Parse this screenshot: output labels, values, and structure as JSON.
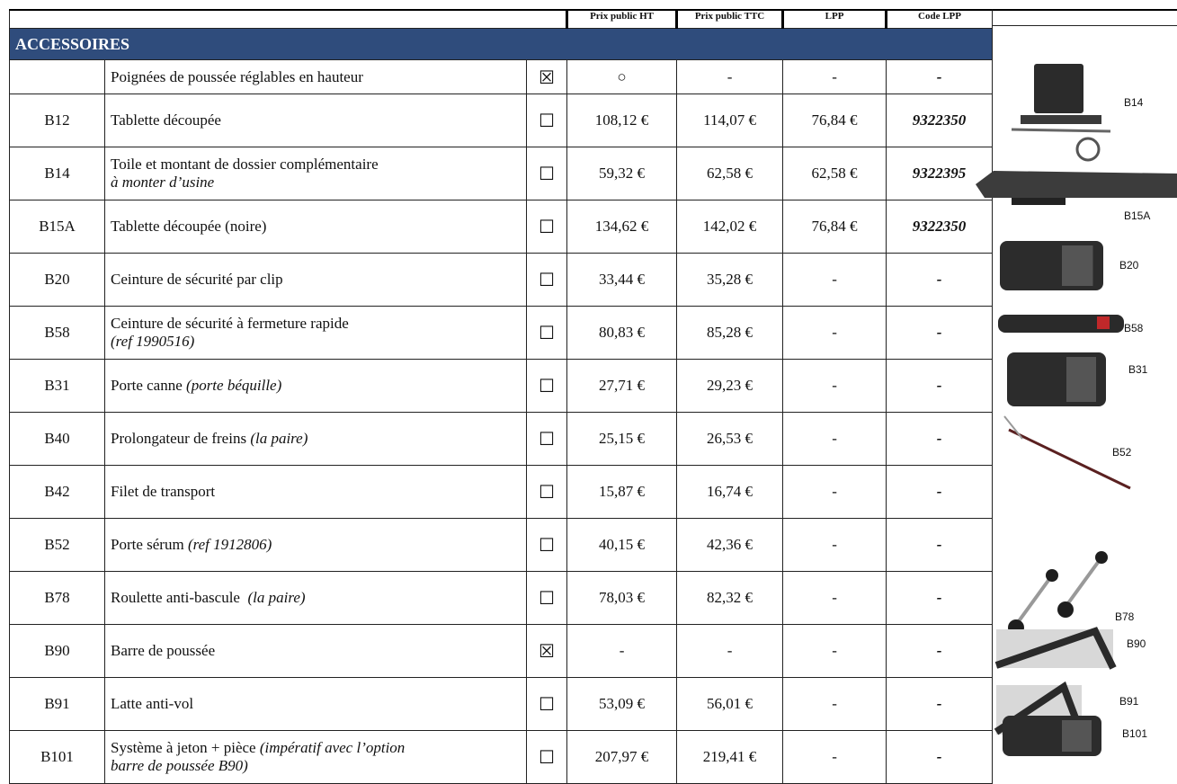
{
  "header": {
    "columns": [
      "Prix public HT",
      "Prix public TTC",
      "LPP",
      "Code LPP"
    ]
  },
  "section": {
    "title": "ACCESSOIRES"
  },
  "table": {
    "rows": [
      {
        "code": null,
        "desc": [
          [
            {
              "text": "Poignées de poussée réglables en hauteur"
            }
          ]
        ],
        "check": "☒",
        "ht": "○",
        "ttc": "-",
        "lpp": "-",
        "code_lpp": "-"
      },
      {
        "code": "B12",
        "desc": [
          [
            {
              "text": "Tablette découpée"
            }
          ]
        ],
        "check": "☐",
        "ht": "108,12 €",
        "ttc": "114,07 €",
        "lpp": "76,84 €",
        "code_lpp": "9322350"
      },
      {
        "code": "B14",
        "desc": [
          [
            {
              "text": "Toile et montant de dossier complémentaire"
            }
          ],
          [
            {
              "text": "à monter d’usine",
              "italic": true
            }
          ]
        ],
        "check": "☐",
        "ht": "59,32 €",
        "ttc": "62,58 €",
        "lpp": "62,58 €",
        "code_lpp": "9322395"
      },
      {
        "code": "B15A",
        "desc": [
          [
            {
              "text": "Tablette découpée (noire)"
            }
          ]
        ],
        "check": "☐",
        "ht": "134,62 €",
        "ttc": "142,02 €",
        "lpp": "76,84 €",
        "code_lpp": "9322350"
      },
      {
        "code": "B20",
        "desc": [
          [
            {
              "text": "Ceinture de sécurité par clip"
            }
          ]
        ],
        "check": "☐",
        "ht": "33,44 €",
        "ttc": "35,28 €",
        "lpp": "-",
        "code_lpp": "-"
      },
      {
        "code": "B58",
        "desc": [
          [
            {
              "text": "Ceinture de sécurité à fermeture rapide"
            }
          ],
          [
            {
              "text": "(ref 1990516)",
              "italic": true
            }
          ]
        ],
        "check": "☐",
        "ht": "80,83 €",
        "ttc": "85,28 €",
        "lpp": "-",
        "code_lpp": "-"
      },
      {
        "code": "B31",
        "desc": [
          [
            {
              "text": "Porte canne "
            },
            {
              "text": "(porte béquille)",
              "italic": true
            }
          ]
        ],
        "check": "☐",
        "ht": "27,71 €",
        "ttc": "29,23 €",
        "lpp": "-",
        "code_lpp": "-"
      },
      {
        "code": "B40",
        "desc": [
          [
            {
              "text": "Prolongateur de freins "
            },
            {
              "text": "(la paire)",
              "italic": true
            }
          ]
        ],
        "check": "☐",
        "ht": "25,15 €",
        "ttc": "26,53 €",
        "lpp": "-",
        "code_lpp": "-"
      },
      {
        "code": "B42",
        "desc": [
          [
            {
              "text": "Filet de transport"
            }
          ]
        ],
        "check": "☐",
        "ht": "15,87 €",
        "ttc": "16,74 €",
        "lpp": "-",
        "code_lpp": "-"
      },
      {
        "code": "B52",
        "desc": [
          [
            {
              "text": "Porte sérum "
            },
            {
              "text": "(ref 1912806)",
              "italic": true
            }
          ]
        ],
        "check": "☐",
        "ht": "40,15 €",
        "ttc": "42,36 €",
        "lpp": "-",
        "code_lpp": "-"
      },
      {
        "code": "B78",
        "desc": [
          [
            {
              "text": "Roulette anti-bascule  "
            },
            {
              "text": "(la paire)",
              "italic": true
            }
          ]
        ],
        "check": "☐",
        "ht": "78,03 €",
        "ttc": "82,32 €",
        "lpp": "-",
        "code_lpp": "-"
      },
      {
        "code": "B90",
        "desc": [
          [
            {
              "text": "Barre de poussée"
            }
          ]
        ],
        "check": "☒",
        "ht": "-",
        "ttc": "-",
        "lpp": "-",
        "code_lpp": "-"
      },
      {
        "code": "B91",
        "desc": [
          [
            {
              "text": "Latte anti-vol"
            }
          ]
        ],
        "check": "☐",
        "ht": "53,09 €",
        "ttc": "56,01 €",
        "lpp": "-",
        "code_lpp": "-"
      },
      {
        "code": "B101",
        "desc": [
          [
            {
              "text": "Système à jeton + pièce "
            },
            {
              "text": "(impératif avec l’option",
              "italic": true
            }
          ],
          [
            {
              "text": "barre de poussée B90)",
              "italic": true
            }
          ]
        ],
        "check": "☐",
        "ht": "207,97 €",
        "ttc": "219,41 €",
        "lpp": "-",
        "code_lpp": "-"
      }
    ]
  },
  "images": [
    {
      "label": "B14"
    },
    {
      "label": "B15A"
    },
    {
      "label": "B20"
    },
    {
      "label": "B58"
    },
    {
      "label": "B31"
    },
    {
      "label": "B52"
    },
    {
      "label": "B78"
    },
    {
      "label": "B90"
    },
    {
      "label": "B91"
    },
    {
      "label": "B101"
    }
  ]
}
